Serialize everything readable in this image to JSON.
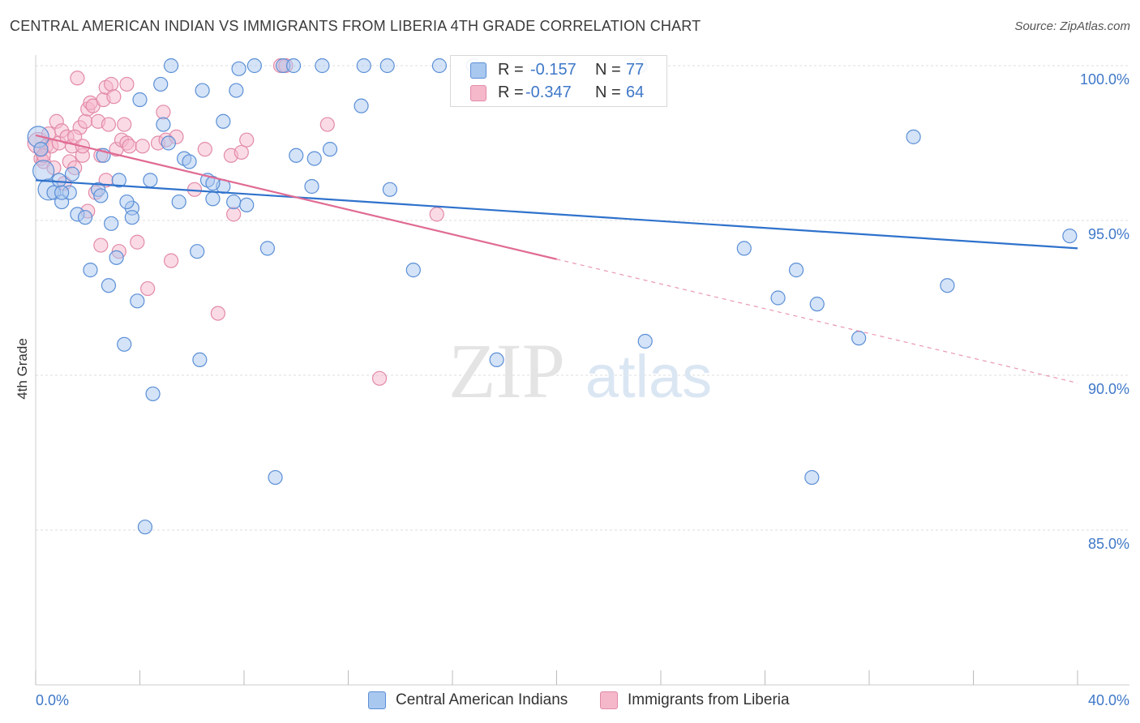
{
  "title": "CENTRAL AMERICAN INDIAN VS IMMIGRANTS FROM LIBERIA 4TH GRADE CORRELATION CHART",
  "source": "Source: ZipAtlas.com",
  "watermark": {
    "zip": "ZIP",
    "atlas": "atlas"
  },
  "colors": {
    "blue_fill": "#a9c8ef",
    "blue_stroke": "#5b8fd6",
    "blue_line": "#2f72cc",
    "pink_fill": "#f5b8cb",
    "pink_stroke": "#e28aa8",
    "pink_line": "#e06b93",
    "tick_label": "#3f78c8",
    "grid": "#dddddd"
  },
  "legend_top": {
    "rows": [
      {
        "r_label": "R =",
        "r_value": "-0.157",
        "n_label": "N =",
        "n_value": "77",
        "color": "blue"
      },
      {
        "r_label": "R =",
        "r_value": "-0.347",
        "n_label": "N =",
        "n_value": "64",
        "color": "pink"
      }
    ]
  },
  "legend_bottom": [
    {
      "label": "Central American Indians",
      "color": "blue"
    },
    {
      "label": "Immigrants from Liberia",
      "color": "pink"
    }
  ],
  "chart_data": {
    "type": "scatter",
    "title": "CENTRAL AMERICAN INDIAN VS IMMIGRANTS FROM LIBERIA 4TH GRADE CORRELATION CHART",
    "xlabel": "",
    "ylabel": "4th Grade",
    "xlim": [
      0,
      40
    ],
    "ylim": [
      80.5,
      100.5
    ],
    "x_tick_labels": [
      {
        "value": 0,
        "label": "0.0%"
      },
      {
        "value": 40,
        "label": "40.0%"
      }
    ],
    "x_minor_ticks": [
      0,
      4,
      8,
      12,
      16,
      20,
      24,
      28,
      32,
      36,
      40
    ],
    "y_ticks": [
      {
        "value": 100,
        "label": "100.0%"
      },
      {
        "value": 95,
        "label": "95.0%"
      },
      {
        "value": 90,
        "label": "90.0%"
      },
      {
        "value": 85,
        "label": "85.0%"
      }
    ],
    "grid": true,
    "legend_position": "top-center",
    "series": [
      {
        "name": "Central American Indians",
        "color": "blue",
        "r": -0.157,
        "n": 77,
        "trend": {
          "x0": 0,
          "y0": 96.3,
          "x1": 40,
          "y1": 94.1
        },
        "points": [
          [
            0.1,
            97.7
          ],
          [
            0.3,
            96.6
          ],
          [
            0.5,
            96.0
          ],
          [
            0.7,
            95.9
          ],
          [
            0.9,
            96.3
          ],
          [
            1.0,
            95.6
          ],
          [
            1.3,
            95.9
          ],
          [
            1.4,
            96.5
          ],
          [
            1.6,
            95.2
          ],
          [
            1.9,
            95.1
          ],
          [
            2.1,
            93.4
          ],
          [
            2.4,
            96.0
          ],
          [
            2.5,
            95.8
          ],
          [
            2.6,
            97.1
          ],
          [
            2.8,
            92.9
          ],
          [
            2.9,
            94.9
          ],
          [
            3.1,
            93.8
          ],
          [
            3.2,
            96.3
          ],
          [
            3.4,
            91.0
          ],
          [
            3.7,
            95.4
          ],
          [
            3.7,
            95.1
          ],
          [
            3.9,
            92.4
          ],
          [
            4.0,
            98.9
          ],
          [
            4.2,
            85.1
          ],
          [
            4.4,
            96.3
          ],
          [
            4.5,
            89.4
          ],
          [
            4.8,
            99.4
          ],
          [
            4.9,
            98.1
          ],
          [
            5.1,
            97.5
          ],
          [
            5.2,
            100.0
          ],
          [
            5.5,
            95.6
          ],
          [
            5.7,
            97.0
          ],
          [
            5.9,
            96.9
          ],
          [
            6.2,
            94.0
          ],
          [
            6.3,
            90.5
          ],
          [
            6.4,
            99.2
          ],
          [
            6.6,
            96.3
          ],
          [
            6.8,
            95.7
          ],
          [
            7.2,
            96.1
          ],
          [
            7.2,
            98.2
          ],
          [
            7.6,
            95.6
          ],
          [
            7.7,
            99.2
          ],
          [
            7.8,
            99.9
          ],
          [
            8.1,
            95.5
          ],
          [
            8.4,
            100.0
          ],
          [
            8.9,
            94.1
          ],
          [
            9.2,
            86.7
          ],
          [
            9.5,
            100.0
          ],
          [
            9.9,
            100.0
          ],
          [
            10.0,
            97.1
          ],
          [
            10.6,
            96.1
          ],
          [
            10.7,
            97.0
          ],
          [
            11.0,
            100.0
          ],
          [
            11.3,
            97.3
          ],
          [
            12.6,
            100.0
          ],
          [
            12.5,
            98.7
          ],
          [
            13.5,
            100.0
          ],
          [
            13.6,
            96.0
          ],
          [
            14.5,
            93.4
          ],
          [
            15.5,
            100.0
          ],
          [
            16.8,
            100.0
          ],
          [
            17.7,
            90.5
          ],
          [
            23.2,
            100.0
          ],
          [
            23.4,
            91.1
          ],
          [
            27.2,
            94.1
          ],
          [
            28.5,
            92.5
          ],
          [
            29.2,
            93.4
          ],
          [
            29.8,
            86.7
          ],
          [
            30.0,
            92.3
          ],
          [
            31.6,
            91.2
          ],
          [
            33.7,
            97.7
          ],
          [
            35.0,
            92.9
          ],
          [
            39.7,
            94.5
          ],
          [
            0.2,
            97.3
          ],
          [
            1.0,
            95.9
          ],
          [
            3.5,
            95.6
          ],
          [
            6.8,
            96.2
          ]
        ]
      },
      {
        "name": "Immigrants from Liberia",
        "color": "pink",
        "r": -0.347,
        "n": 64,
        "trend": {
          "x0": 0,
          "y0": 97.75,
          "x1": 20,
          "y1": 93.75,
          "dash_x1": 40,
          "dash_y1": 89.75
        },
        "points": [
          [
            0.1,
            97.5
          ],
          [
            0.2,
            97.0
          ],
          [
            0.3,
            96.9
          ],
          [
            0.4,
            97.4
          ],
          [
            0.5,
            97.8
          ],
          [
            0.6,
            97.4
          ],
          [
            0.7,
            96.7
          ],
          [
            0.8,
            98.2
          ],
          [
            0.9,
            97.5
          ],
          [
            1.0,
            97.9
          ],
          [
            1.1,
            96.2
          ],
          [
            1.2,
            97.7
          ],
          [
            1.3,
            96.9
          ],
          [
            1.4,
            97.4
          ],
          [
            1.5,
            96.7
          ],
          [
            1.6,
            99.6
          ],
          [
            1.7,
            98.0
          ],
          [
            1.8,
            97.1
          ],
          [
            1.9,
            98.2
          ],
          [
            2.0,
            95.3
          ],
          [
            2.0,
            98.6
          ],
          [
            2.1,
            98.8
          ],
          [
            2.2,
            98.7
          ],
          [
            2.3,
            95.9
          ],
          [
            2.4,
            98.2
          ],
          [
            2.5,
            97.1
          ],
          [
            2.5,
            94.2
          ],
          [
            2.6,
            98.9
          ],
          [
            2.7,
            96.3
          ],
          [
            2.7,
            99.3
          ],
          [
            2.8,
            98.1
          ],
          [
            2.9,
            99.4
          ],
          [
            3.0,
            99.0
          ],
          [
            3.1,
            97.3
          ],
          [
            3.2,
            94.0
          ],
          [
            3.3,
            97.6
          ],
          [
            3.4,
            98.1
          ],
          [
            3.5,
            97.5
          ],
          [
            3.5,
            99.4
          ],
          [
            3.6,
            97.4
          ],
          [
            3.9,
            94.3
          ],
          [
            4.1,
            97.4
          ],
          [
            4.3,
            92.8
          ],
          [
            4.7,
            97.5
          ],
          [
            4.9,
            98.5
          ],
          [
            5.0,
            97.6
          ],
          [
            5.2,
            93.7
          ],
          [
            5.4,
            97.7
          ],
          [
            6.1,
            96.0
          ],
          [
            6.5,
            97.3
          ],
          [
            7.0,
            92.0
          ],
          [
            7.5,
            97.1
          ],
          [
            7.6,
            95.2
          ],
          [
            7.9,
            97.2
          ],
          [
            8.1,
            97.6
          ],
          [
            9.4,
            100.0
          ],
          [
            9.6,
            100.0
          ],
          [
            11.2,
            98.1
          ],
          [
            13.2,
            89.9
          ],
          [
            15.4,
            95.2
          ],
          [
            0.2,
            97.3
          ],
          [
            0.3,
            97.1
          ],
          [
            1.5,
            97.7
          ],
          [
            1.8,
            97.4
          ]
        ]
      }
    ]
  }
}
